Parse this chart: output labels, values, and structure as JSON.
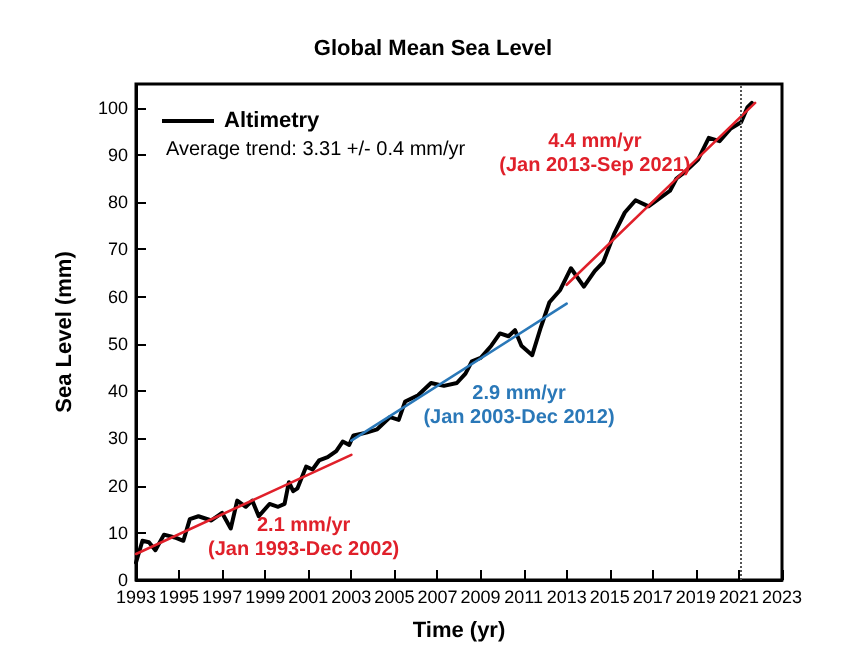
{
  "chart_data": {
    "type": "line",
    "title": "Global Mean Sea Level",
    "xlabel": "Time (yr)",
    "ylabel": "Sea Level (mm)",
    "series": [
      {
        "name": "Altimetry",
        "color": "#000000",
        "x": [
          1993.0,
          1993.3,
          1993.6,
          1993.9,
          1994.3,
          1994.8,
          1995.2,
          1995.5,
          1995.9,
          1996.5,
          1997.0,
          1997.4,
          1997.7,
          1998.1,
          1998.4,
          1998.7,
          1999.2,
          1999.6,
          1999.9,
          2000.1,
          2000.3,
          2000.5,
          2000.9,
          2001.2,
          2001.5,
          2001.9,
          2002.3,
          2002.6,
          2002.9,
          2003.1,
          2003.7,
          2004.2,
          2004.8,
          2005.2,
          2005.5,
          2006.1,
          2006.7,
          2007.3,
          2007.9,
          2008.3,
          2008.6,
          2009.0,
          2009.5,
          2009.9,
          2010.3,
          2010.6,
          2010.9,
          2011.4,
          2011.8,
          2012.2,
          2012.7,
          2013.2,
          2013.8,
          2014.3,
          2014.7,
          2015.2,
          2015.7,
          2016.2,
          2016.8,
          2017.2,
          2017.8,
          2018.1,
          2018.5,
          2019.1,
          2019.6,
          2020.1,
          2020.6,
          2021.1,
          2021.4,
          2021.6
        ],
        "values": [
          3.7,
          8.3,
          8,
          6.3,
          9.6,
          9,
          8.3,
          12.9,
          13.5,
          12.6,
          14.2,
          10.9,
          16.8,
          15.5,
          16.8,
          13.5,
          16.1,
          15.5,
          16.1,
          20.7,
          18.8,
          19.4,
          24,
          23.4,
          25.3,
          26,
          27.3,
          29.3,
          28.6,
          30.6,
          31.2,
          31.9,
          34.5,
          33.9,
          37.8,
          39.1,
          41.7,
          41.1,
          41.7,
          43.7,
          46.3,
          47,
          49.6,
          52.2,
          51.6,
          52.9,
          49.6,
          47.6,
          53.5,
          58.8,
          61.4,
          66,
          62.1,
          65.4,
          67.3,
          73.2,
          77.8,
          80.4,
          79.1,
          80.4,
          82.4,
          85,
          86.4,
          89,
          93.6,
          92.9,
          95.5,
          96.9,
          100.1,
          101
        ]
      },
      {
        "name": "2.1 mm/yr\n(Jan 1993-Dec 2002)",
        "color": "#e0202a",
        "x": [
          1993,
          2003
        ],
        "values": [
          5.5,
          26.5
        ]
      },
      {
        "name": "2.9 mm/yr\n(Jan 2003-Dec 2012)",
        "color": "#2a78b8",
        "x": [
          2003,
          2013
        ],
        "values": [
          29.5,
          58.5
        ]
      },
      {
        "name": "4.4 mm/yr\n(Jan 2013-Sep 2021)",
        "color": "#e0202a",
        "x": [
          2013,
          2021.75
        ],
        "values": [
          62.5,
          101
        ]
      }
    ],
    "xlim": [
      1993,
      2023
    ],
    "xticks": [
      1993,
      1995,
      1997,
      1999,
      2001,
      2003,
      2005,
      2007,
      2009,
      2011,
      2013,
      2015,
      2017,
      2019,
      2021,
      2023
    ],
    "ylim": [
      0,
      105
    ],
    "yticks": [
      0,
      10,
      20,
      30,
      40,
      50,
      60,
      70,
      80,
      90,
      100
    ],
    "ref_lines": [
      {
        "axis": "x",
        "value": 2021.1,
        "color": "#555555",
        "line_style": "dotted"
      }
    ],
    "annotations": [
      "Average trend: 3.31 +/- 0.4 mm/yr"
    ],
    "legend": "top left",
    "grid": false,
    "marker": "none",
    "line_style": "solid"
  }
}
